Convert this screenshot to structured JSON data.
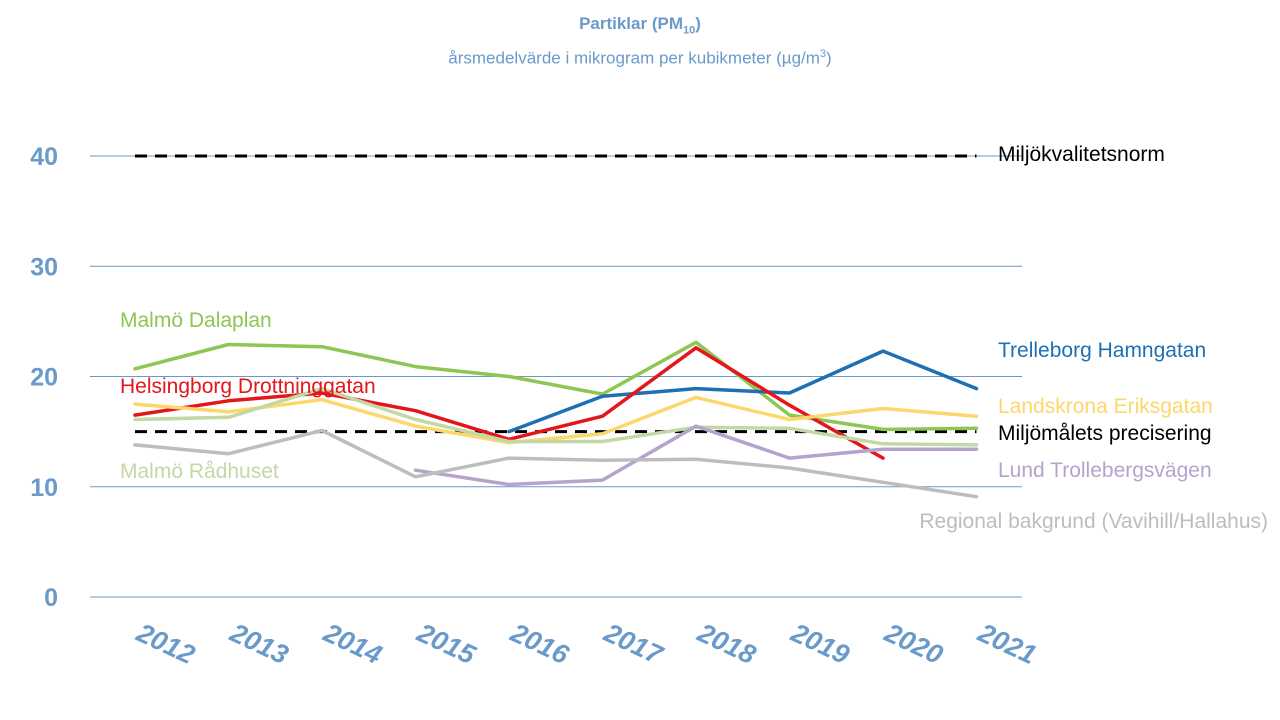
{
  "chart_data": {
    "type": "line",
    "title": "Partiklar (PM",
    "title_sub": "10",
    "title_end": ")",
    "subtitle": "årsmedelvärde i mikrogram per kubikmeter (µg/m",
    "subtitle_sup": "3",
    "subtitle_end": ")",
    "xlabel": "",
    "ylabel": "",
    "x": [
      "2012",
      "2013",
      "2014",
      "2015",
      "2016",
      "2017",
      "2018",
      "2019",
      "2020",
      "2021"
    ],
    "y_ticks": [
      "0",
      "10",
      "20",
      "30",
      "40"
    ],
    "ylim": [
      0,
      40
    ],
    "grid": true,
    "legend": "inline labels at line ends",
    "reference_lines": [
      {
        "name": "Miljökvalitetsnorm",
        "value": 40,
        "color": "#000000",
        "style": "dashed"
      },
      {
        "name": "Miljömålets precisering",
        "value": 15,
        "color": "#000000",
        "style": "dashed"
      }
    ],
    "series": [
      {
        "name": "Malmö Dalaplan",
        "color": "#8dc653",
        "values": [
          20.7,
          22.9,
          22.7,
          20.9,
          20.0,
          18.4,
          23.1,
          16.5,
          15.2,
          15.3
        ]
      },
      {
        "name": "Trelleborg Hamngatan",
        "color": "#1f6fb4",
        "values": [
          null,
          null,
          null,
          null,
          15.0,
          18.2,
          18.9,
          18.5,
          22.3,
          18.9
        ]
      },
      {
        "name": "Helsingborg Drottninggatan",
        "color": "#e3161b",
        "values": [
          16.5,
          17.8,
          18.5,
          16.9,
          14.3,
          16.4,
          22.6,
          17.4,
          12.6,
          null
        ]
      },
      {
        "name": "Landskrona Eriksgatan",
        "color": "#fcd86a",
        "values": [
          17.5,
          16.8,
          17.9,
          15.5,
          14.0,
          14.8,
          18.1,
          16.1,
          17.1,
          16.4
        ]
      },
      {
        "name": "Malmö Rådhuset",
        "color": "#c3d8a4",
        "values": [
          16.1,
          16.3,
          18.9,
          16.1,
          14.1,
          14.1,
          15.4,
          15.3,
          13.9,
          13.8
        ]
      },
      {
        "name": "Lund Trollebergsvägen",
        "color": "#b4a3cc",
        "values": [
          null,
          null,
          null,
          11.5,
          10.2,
          10.6,
          15.5,
          12.6,
          13.4,
          13.4
        ]
      },
      {
        "name": "Regional bakgrund (Vavihill/Hallahus)",
        "color": "#bdbdbd",
        "values": [
          13.8,
          13.0,
          15.1,
          10.9,
          12.6,
          12.4,
          12.5,
          11.7,
          10.4,
          9.1
        ]
      }
    ]
  },
  "colors": {
    "axis_text": "#6a9ac9",
    "grid": "#6a9ac9",
    "title": "#6a9ac9"
  }
}
